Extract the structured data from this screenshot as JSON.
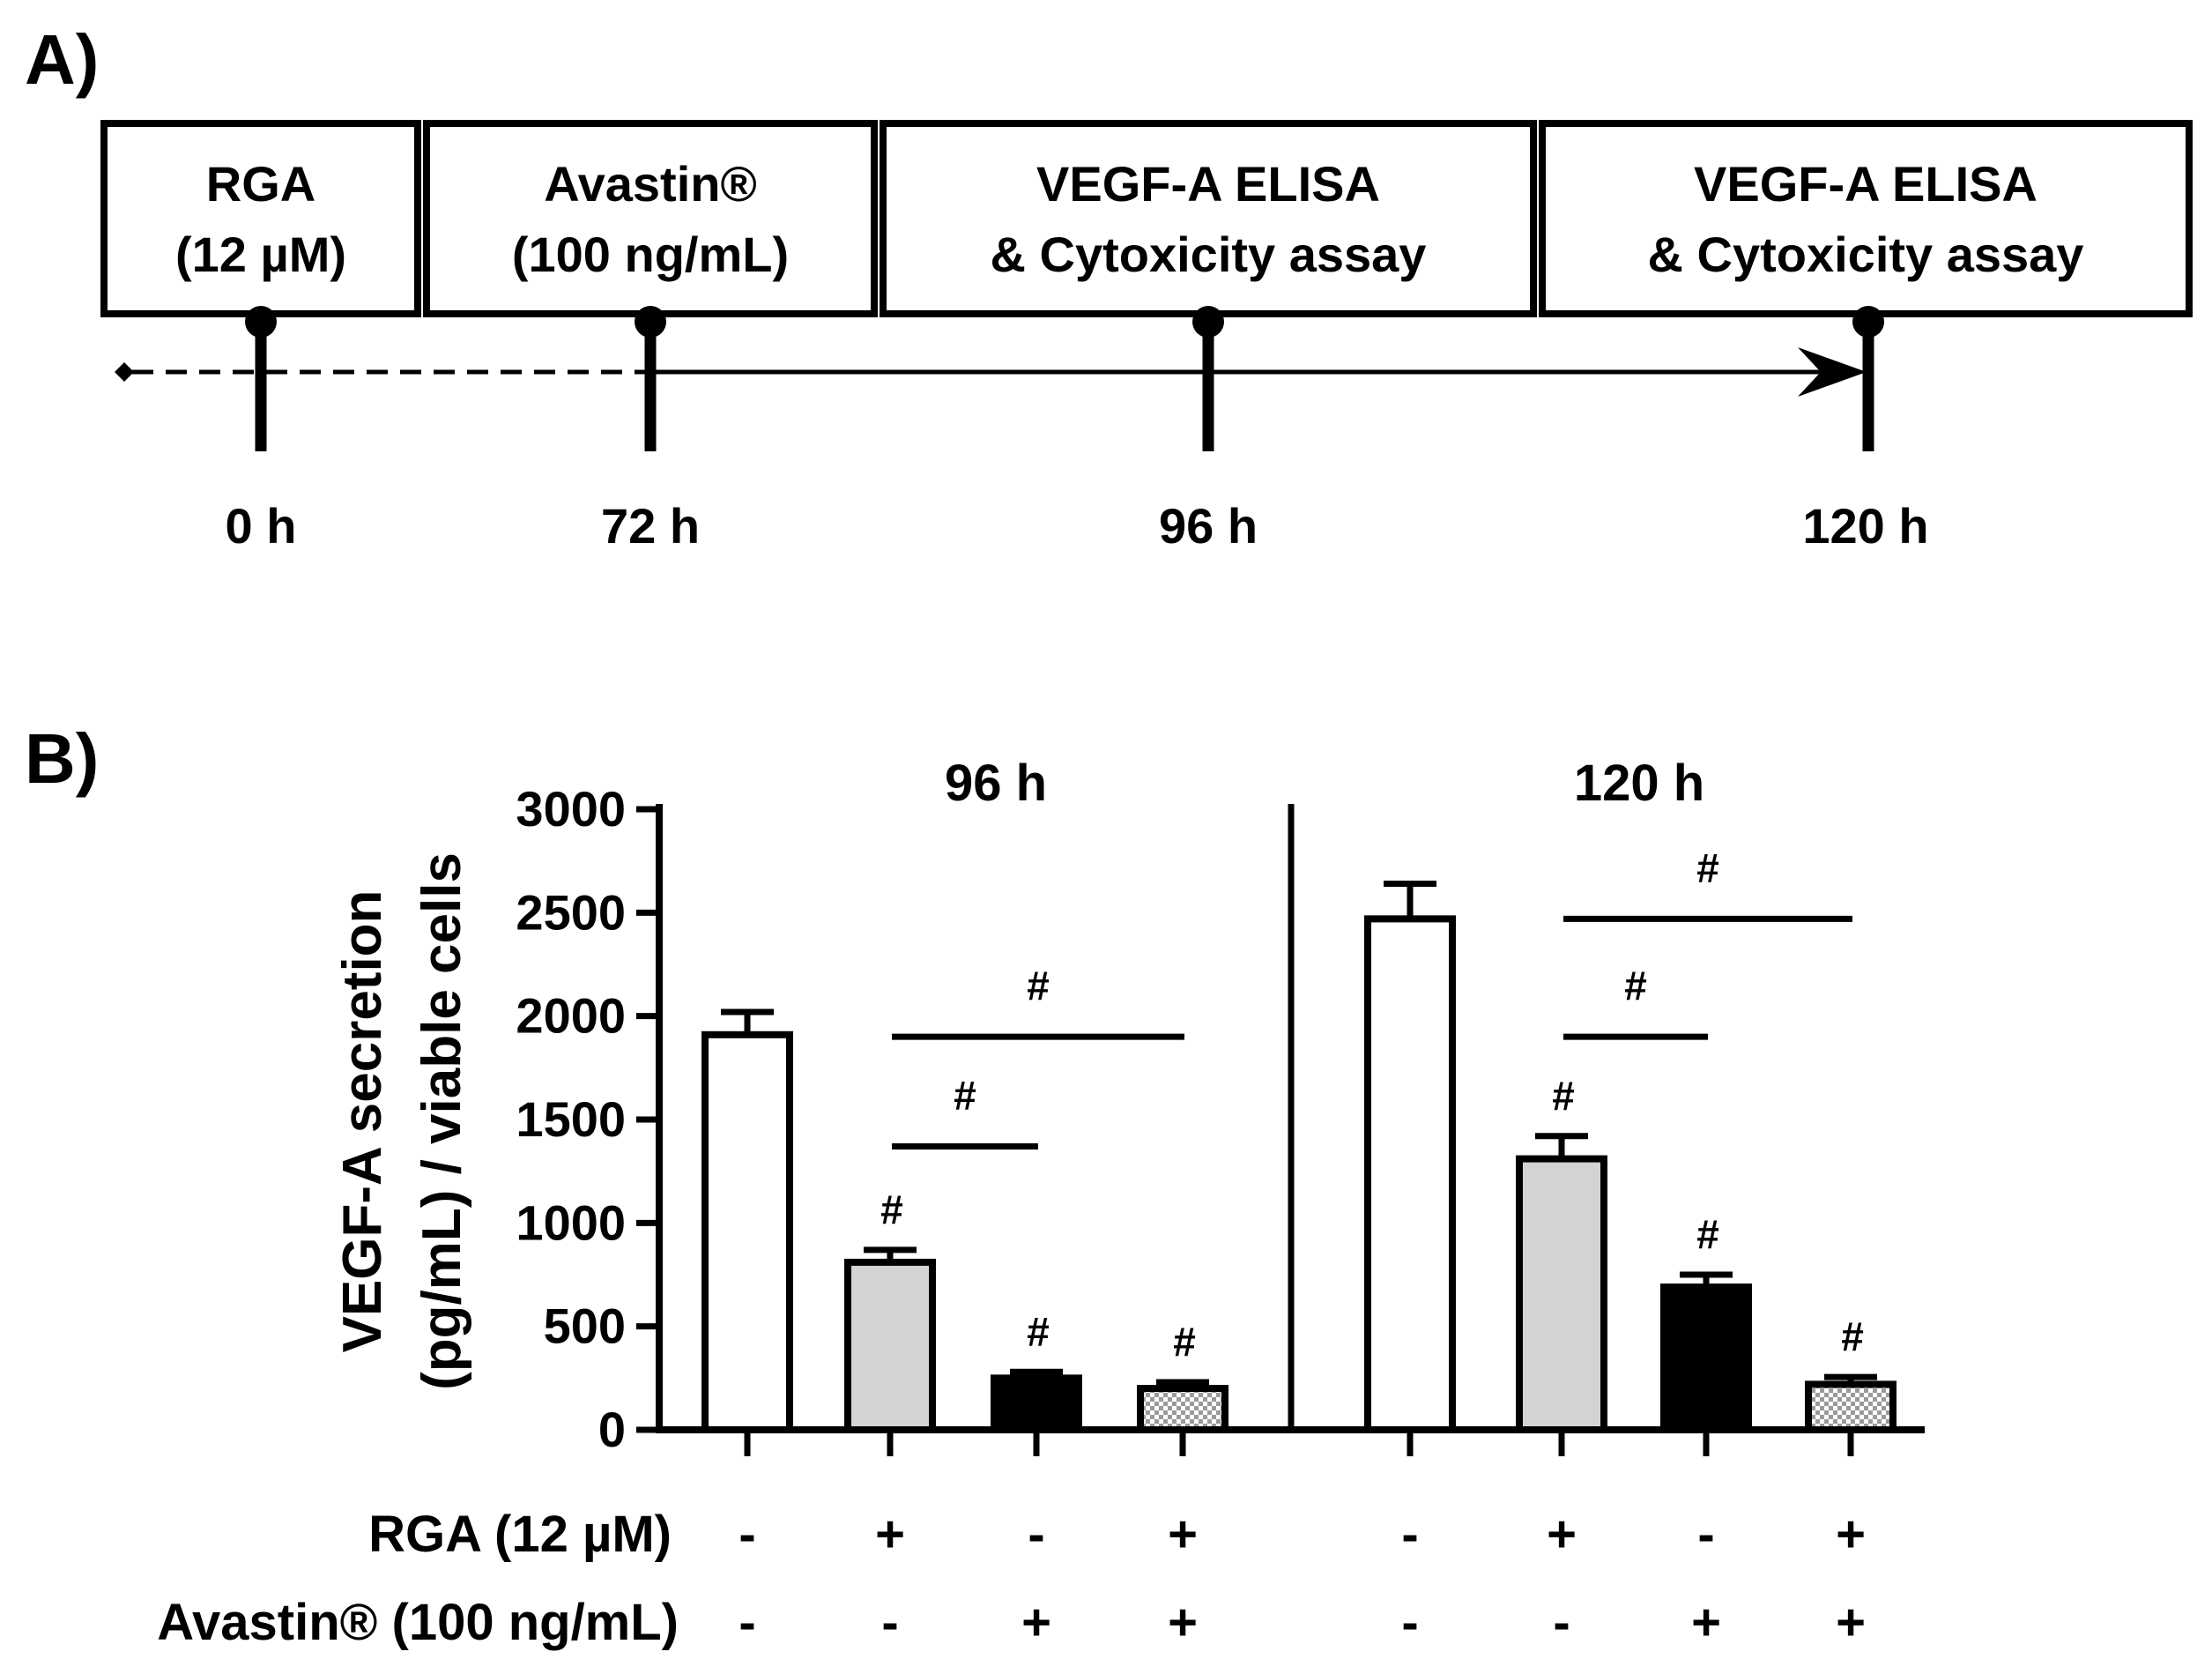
{
  "panel_a": {
    "label": "A)",
    "boxes": [
      {
        "line1": "RGA",
        "line2": "(12 µM)"
      },
      {
        "line1": "Avastin®",
        "line2": "(100 ng/mL)"
      },
      {
        "line1": "VEGF-A ELISA",
        "line2": "& Cytoxicity assay"
      },
      {
        "line1": "VEGF-A ELISA",
        "line2": "& Cytoxicity assay"
      }
    ],
    "timepoints": [
      "0 h",
      "72 h",
      "96 h",
      "120 h"
    ]
  },
  "panel_b": {
    "label": "B)",
    "significance_symbol": "#",
    "row_labels": {
      "rga": "RGA (12 µM)",
      "avastin": "Avastin® (100 ng/mL)"
    },
    "rga_row": [
      "-",
      "+",
      "-",
      "+",
      "-",
      "+",
      "-",
      "+"
    ],
    "avastin_row": [
      "-",
      "-",
      "+",
      "+",
      "-",
      "-",
      "+",
      "+"
    ]
  },
  "colors": {
    "control": "#ffffff",
    "rga": "#d3d3d3",
    "avastin": "#000000",
    "combo_pattern": "#9a9a9a",
    "ink": "#000000"
  },
  "chart_data": {
    "type": "bar",
    "title": "",
    "ylabel_line1": "VEGF-A secretion",
    "ylabel_line2": "(pg/mL) / viable cells",
    "xlabel": "",
    "ylim": [
      0,
      3000
    ],
    "yticks": [
      0,
      500,
      1000,
      1500,
      2000,
      2500,
      3000
    ],
    "groups": [
      {
        "name": "96 h",
        "bars": [
          {
            "treatment": "control",
            "value": 1910,
            "error": 110,
            "hash": false
          },
          {
            "treatment": "rga",
            "value": 810,
            "error": 60,
            "hash": true
          },
          {
            "treatment": "avastin",
            "value": 250,
            "error": 30,
            "hash": true
          },
          {
            "treatment": "combo",
            "value": 200,
            "error": 30,
            "hash": true
          }
        ],
        "brackets": [
          {
            "from": 1,
            "to": 2,
            "y": 1370,
            "label": "#"
          },
          {
            "from": 1,
            "to": 3,
            "y": 1900,
            "label": "#"
          }
        ]
      },
      {
        "name": "120 h",
        "bars": [
          {
            "treatment": "control",
            "value": 2470,
            "error": 170,
            "hash": false
          },
          {
            "treatment": "rga",
            "value": 1310,
            "error": 110,
            "hash": true
          },
          {
            "treatment": "avastin",
            "value": 690,
            "error": 60,
            "hash": true
          },
          {
            "treatment": "combo",
            "value": 220,
            "error": 35,
            "hash": true
          }
        ],
        "brackets": [
          {
            "from": 1,
            "to": 2,
            "y": 1900,
            "label": "#"
          },
          {
            "from": 1,
            "to": 3,
            "y": 2470,
            "label": "#"
          }
        ]
      }
    ]
  }
}
